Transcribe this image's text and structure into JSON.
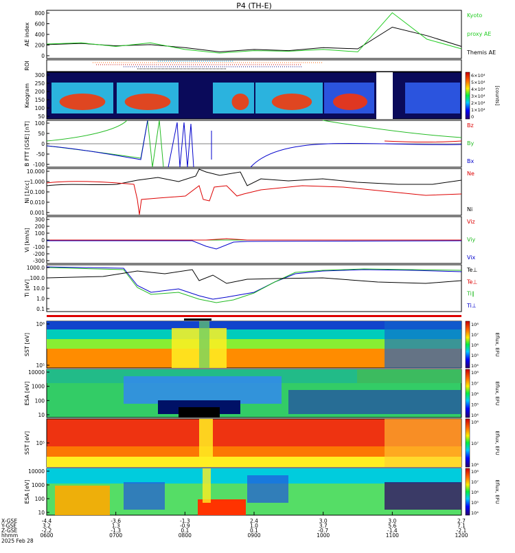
{
  "title": "P4 (TH-E)",
  "panels": [
    {
      "id": "ae",
      "ylabel": "AE index",
      "yticks": [
        "800",
        "600",
        "400",
        "200",
        "0"
      ],
      "legend": [
        {
          "text": "Kyoto",
          "color": "#22cc22"
        },
        {
          "text": "proxy AE",
          "color": "#22cc22"
        },
        {
          "text": "Themis AE",
          "color": "#000000"
        }
      ]
    },
    {
      "id": "roi",
      "ylabel": "ROI",
      "yticks": [],
      "legend": []
    },
    {
      "id": "keogram",
      "ylabel": "Keogram",
      "yticks": [
        "300",
        "250",
        "200",
        "150",
        "100",
        "50"
      ],
      "legend": []
    },
    {
      "id": "bfield",
      "ylabel": "B FTT [GSE] [nT]",
      "yticks": [
        "100",
        "50",
        "0",
        "-50",
        "-100"
      ],
      "legend": [
        {
          "text": "Bz",
          "color": "#dd0000"
        },
        {
          "text": "By",
          "color": "#22bb22"
        },
        {
          "text": "Bx",
          "color": "#0000cc"
        }
      ]
    },
    {
      "id": "density",
      "ylabel": "Ni [1/cc]",
      "yticks": [
        "10.000",
        "1.000",
        "0.100",
        "0.010",
        "0.001"
      ],
      "legend": [
        {
          "text": "Ne",
          "color": "#dd0000"
        },
        {
          "text": "Ni",
          "color": "#000000"
        }
      ]
    },
    {
      "id": "velocity",
      "ylabel": "Vi [km/s]",
      "yticks": [
        "300",
        "200",
        "100",
        "0",
        "-100",
        "-200",
        "-300"
      ],
      "legend": [
        {
          "text": "Viz",
          "color": "#dd0000"
        },
        {
          "text": "Viy",
          "color": "#22bb22"
        },
        {
          "text": "Vix",
          "color": "#0000cc"
        }
      ]
    },
    {
      "id": "temperature",
      "ylabel": "Ti [eV]",
      "yticks": [
        "1000.0",
        "100.0",
        "10.0",
        "1.0",
        "0.1"
      ],
      "legend": [
        {
          "text": "Te⊥",
          "color": "#000000"
        },
        {
          "text": "Te⊥",
          "color": "#dd0000"
        },
        {
          "text": "Ti∥",
          "color": "#22bb22"
        },
        {
          "text": "Ti⊥",
          "color": "#0000cc"
        }
      ]
    },
    {
      "id": "sst_e",
      "ylabel": "SST [eV]",
      "yticks": [
        "10⁶",
        "10⁵"
      ],
      "legend": []
    },
    {
      "id": "esa_e",
      "ylabel": "ESA [eV]",
      "yticks": [
        "10000",
        "1000",
        "100",
        "10"
      ],
      "legend": []
    },
    {
      "id": "sst_i",
      "ylabel": "SST [eV]",
      "yticks": [
        "10⁵"
      ],
      "legend": []
    },
    {
      "id": "esa_i",
      "ylabel": "ESA [eV]",
      "yticks": [
        "10000",
        "1000",
        "100",
        "10"
      ],
      "legend": []
    }
  ],
  "colorbars": [
    {
      "unit": "[counts]",
      "ticks": [
        "6×10⁴",
        "5×10⁴",
        "4×10⁴",
        "3×10⁴",
        "2×10⁴",
        "1×10⁴",
        "0"
      ]
    },
    {
      "unit": "Eflux, EFU",
      "ticks": [
        "10⁸",
        "10⁷",
        "10⁶",
        "10⁵",
        "10⁴"
      ]
    },
    {
      "unit": "Eflux, EFU",
      "ticks": [
        "10⁸",
        "10⁷",
        "10⁶",
        "10⁵",
        "10⁴"
      ]
    },
    {
      "unit": "Eflux, EFU",
      "ticks": [
        "10⁸",
        "10⁷",
        "10⁶"
      ]
    },
    {
      "unit": "Eflux, EFU",
      "ticks": [
        "10⁸",
        "10⁷",
        "10⁶",
        "10⁵",
        "10⁴"
      ]
    }
  ],
  "xaxis": {
    "row_labels": [
      "X-GSE",
      "Y-GSE",
      "Z-GSE",
      "hhmm",
      "2025 Feb 28"
    ],
    "ticks": [
      {
        "x": "-4.4",
        "y": "3.2",
        "z": "-2.2",
        "t": "0600"
      },
      {
        "x": "-3.6",
        "y": "1.3",
        "z": "-1.3",
        "t": "0700"
      },
      {
        "x": "-1.3",
        "y": "-0.9",
        "z": "0.1",
        "t": "0800"
      },
      {
        "x": "2.4",
        "y": "1.0",
        "z": "0.1",
        "t": "0900"
      },
      {
        "x": "3.0",
        "y": "3.7",
        "z": "-0.7",
        "t": "1000"
      },
      {
        "x": "3.0",
        "y": "5.6",
        "z": "-1.4",
        "t": "1100"
      },
      {
        "x": "2.7",
        "y": "7.1",
        "z": "-2.1",
        "t": "1200"
      }
    ]
  },
  "chart_data": {
    "type": "line",
    "title": "P4 (TH-E)",
    "xlabel": "hhmm",
    "x": [
      "0600",
      "0630",
      "0700",
      "0730",
      "0800",
      "0830",
      "0900",
      "0930",
      "1000",
      "1030",
      "1100",
      "1130",
      "1200"
    ],
    "series": [
      {
        "name": "Themis AE",
        "values": [
          230,
          250,
          210,
          230,
          180,
          110,
          150,
          130,
          180,
          160,
          520,
          380,
          200
        ],
        "color": "#000000"
      },
      {
        "name": "Kyoto proxy AE",
        "values": [
          240,
          260,
          200,
          260,
          150,
          90,
          130,
          120,
          150,
          110,
          760,
          320,
          160
        ],
        "color": "#22cc22"
      }
    ],
    "ylabel": "AE index",
    "ylim": [
      0,
      800
    ]
  }
}
